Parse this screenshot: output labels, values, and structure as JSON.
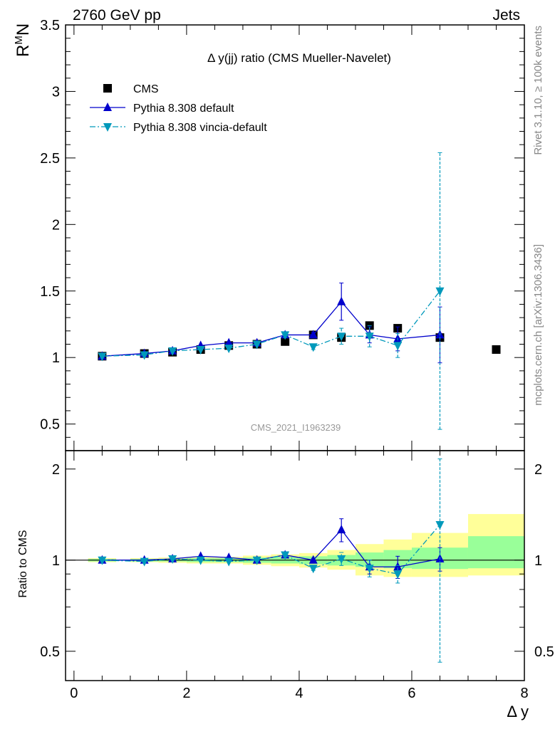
{
  "header": {
    "energy_label": "2760 GeV pp",
    "process_label": "Jets"
  },
  "side_labels": {
    "rivet": "Rivet 3.1.10, ≥ 100k events",
    "mcplots": "mcplots.cern.ch [arXiv:1306.3436]"
  },
  "colors": {
    "cms": "#000000",
    "pythia_default": "#0000cc",
    "pythia_vincia": "#0099bb",
    "band_inner": "#99ff99",
    "band_outer": "#ffff99"
  },
  "chart_data": [
    {
      "type": "scatter",
      "panel": "main",
      "title": "Δ y(jj) ratio (CMS Mueller-Navelet)",
      "watermark": "CMS_2021_I1963239",
      "ylabel": "R^M N",
      "ylabel_main": "R",
      "ylabel_sup": "M",
      "ylabel_sub": "N",
      "xlim": [
        -0.15,
        8.0
      ],
      "ylim": [
        0.3,
        3.5
      ],
      "yticks": [
        0.5,
        1,
        1.5,
        2,
        2.5,
        3,
        3.5
      ],
      "ytick_labels": [
        "0.5",
        "1",
        "1.5",
        "2",
        "2.5",
        "3",
        "3.5"
      ],
      "legend_position": "top-left",
      "series": [
        {
          "name": "CMS",
          "style": "square",
          "x": [
            0.5,
            1.25,
            1.75,
            2.25,
            2.75,
            3.25,
            3.75,
            4.25,
            4.75,
            5.25,
            5.75,
            6.5,
            7.5
          ],
          "y": [
            1.01,
            1.03,
            1.04,
            1.06,
            1.09,
            1.1,
            1.12,
            1.17,
            1.15,
            1.24,
            1.22,
            1.15,
            1.06
          ],
          "yerr": [
            0,
            0,
            0,
            0,
            0,
            0,
            0,
            0,
            0,
            0,
            0,
            0,
            0
          ]
        },
        {
          "name": "Pythia 8.308 default",
          "style": "triangle-up-solid",
          "x": [
            0.5,
            1.25,
            1.75,
            2.25,
            2.75,
            3.25,
            3.75,
            4.25,
            4.75,
            5.25,
            5.75,
            6.5
          ],
          "y": [
            1.01,
            1.03,
            1.05,
            1.09,
            1.11,
            1.11,
            1.17,
            1.17,
            1.42,
            1.17,
            1.14,
            1.17
          ],
          "yerr": [
            0.005,
            0.005,
            0.005,
            0.01,
            0.01,
            0.01,
            0.02,
            0.02,
            0.14,
            0.06,
            0.09,
            0.21
          ]
        },
        {
          "name": "Pythia 8.308 vincia-default",
          "style": "triangle-down-dashdot",
          "x": [
            0.5,
            1.25,
            1.75,
            2.25,
            2.75,
            3.25,
            3.75,
            4.25,
            4.75,
            5.25,
            5.75,
            6.5
          ],
          "y": [
            1.01,
            1.02,
            1.05,
            1.06,
            1.07,
            1.1,
            1.17,
            1.08,
            1.16,
            1.16,
            1.09,
            1.5
          ],
          "yerr": [
            0.005,
            0.005,
            0.005,
            0.01,
            0.01,
            0.01,
            0.02,
            0.02,
            0.06,
            0.08,
            0.09,
            1.04
          ]
        }
      ]
    },
    {
      "type": "scatter",
      "panel": "ratio",
      "ylabel": "Ratio to CMS",
      "xlabel": "Δ y",
      "xlim": [
        -0.15,
        8.0
      ],
      "ylim": [
        0.4,
        2.3
      ],
      "ylog": true,
      "yticks": [
        0.5,
        1,
        2
      ],
      "ytick_labels": [
        "0.5",
        "1",
        "2"
      ],
      "xticks": [
        0,
        2,
        4,
        6,
        8
      ],
      "xtick_labels": [
        "0",
        "2",
        "4",
        "6",
        "8"
      ],
      "reference_line": 1,
      "uncertainty_bands": [
        {
          "x_low": 0.25,
          "x_high": 0.75,
          "inner": [
            0.99,
            1.01
          ],
          "outer": [
            0.985,
            1.015
          ]
        },
        {
          "x_low": 1.0,
          "x_high": 1.5,
          "inner": [
            0.99,
            1.01
          ],
          "outer": [
            0.985,
            1.015
          ]
        },
        {
          "x_low": 1.5,
          "x_high": 2.0,
          "inner": [
            0.99,
            1.01
          ],
          "outer": [
            0.98,
            1.02
          ]
        },
        {
          "x_low": 2.0,
          "x_high": 2.5,
          "inner": [
            0.985,
            1.015
          ],
          "outer": [
            0.975,
            1.025
          ]
        },
        {
          "x_low": 2.5,
          "x_high": 3.0,
          "inner": [
            0.985,
            1.015
          ],
          "outer": [
            0.975,
            1.025
          ]
        },
        {
          "x_low": 3.0,
          "x_high": 3.5,
          "inner": [
            0.98,
            1.02
          ],
          "outer": [
            0.965,
            1.035
          ]
        },
        {
          "x_low": 3.5,
          "x_high": 4.0,
          "inner": [
            0.975,
            1.025
          ],
          "outer": [
            0.955,
            1.045
          ]
        },
        {
          "x_low": 4.0,
          "x_high": 4.5,
          "inner": [
            0.97,
            1.03
          ],
          "outer": [
            0.945,
            1.055
          ]
        },
        {
          "x_low": 4.5,
          "x_high": 5.0,
          "inner": [
            0.96,
            1.04
          ],
          "outer": [
            0.93,
            1.08
          ]
        },
        {
          "x_low": 5.0,
          "x_high": 5.5,
          "inner": [
            0.95,
            1.06
          ],
          "outer": [
            0.89,
            1.13
          ]
        },
        {
          "x_low": 5.5,
          "x_high": 6.0,
          "inner": [
            0.94,
            1.08
          ],
          "outer": [
            0.88,
            1.17
          ]
        },
        {
          "x_low": 6.0,
          "x_high": 7.0,
          "inner": [
            0.935,
            1.1
          ],
          "outer": [
            0.88,
            1.23
          ]
        },
        {
          "x_low": 7.0,
          "x_high": 8.0,
          "inner": [
            0.94,
            1.2
          ],
          "outer": [
            0.89,
            1.42
          ]
        }
      ],
      "series": [
        {
          "name": "Pythia 8.308 default",
          "style": "triangle-up-solid",
          "x": [
            0.5,
            1.25,
            1.75,
            2.25,
            2.75,
            3.25,
            3.75,
            4.25,
            4.75,
            5.25,
            5.75,
            6.5
          ],
          "y": [
            1.0,
            1.0,
            1.01,
            1.03,
            1.02,
            1.0,
            1.04,
            1.0,
            1.26,
            0.95,
            0.95,
            1.01
          ],
          "yerr": [
            0.004,
            0.004,
            0.004,
            0.008,
            0.008,
            0.008,
            0.015,
            0.015,
            0.11,
            0.05,
            0.08,
            0.09
          ]
        },
        {
          "name": "Pythia 8.308 vincia-default",
          "style": "triangle-down-dashdot",
          "x": [
            0.5,
            1.25,
            1.75,
            2.25,
            2.75,
            3.25,
            3.75,
            4.25,
            4.75,
            5.25,
            5.75,
            6.5
          ],
          "y": [
            1.0,
            0.99,
            1.01,
            1.0,
            0.99,
            1.0,
            1.04,
            0.94,
            1.01,
            0.94,
            0.9,
            1.31
          ],
          "yerr": [
            0.004,
            0.004,
            0.004,
            0.008,
            0.008,
            0.008,
            0.015,
            0.015,
            0.05,
            0.06,
            0.06,
            0.85
          ]
        }
      ]
    }
  ]
}
